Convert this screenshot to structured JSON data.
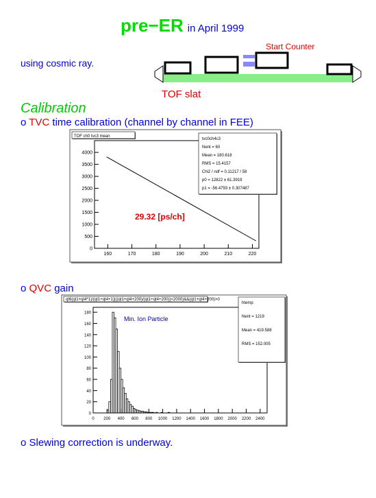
{
  "title": {
    "main": "pre−ER",
    "sub": "in April 1999"
  },
  "intro": "using cosmic ray.",
  "diagram": {
    "start_counter": "Start Counter",
    "slat": "TOF slat"
  },
  "section": "Calibration",
  "items": [
    {
      "bullet": "o",
      "key": "TVC",
      "text": "time calibration (channel by channel in FEE)"
    },
    {
      "bullet": "o",
      "key": "QVC",
      "text": "gain"
    },
    {
      "bullet": "o",
      "text": "Slewing correction is underway."
    }
  ],
  "plots": [
    {
      "type": "line",
      "title": "TOF ch0 tvc3 mean",
      "annotation": "29.32 [ps/ch]",
      "stats": [
        "tvc0ch4c3",
        "Nent = 60",
        "Mean = 180.618",
        "RMS = 15.4157",
        "Chi2 / ndf = 0.11217 / 58",
        "p0 = 12822 ± 61.3919",
        "p1 = -56.4793 ± 0.307487"
      ],
      "x": [
        159.5,
        221.5
      ],
      "values": [
        3814,
        311
      ],
      "xlim": [
        154.5,
        222.7
      ],
      "xticks": [
        160,
        170,
        180,
        190,
        200,
        210,
        220
      ],
      "ylim": [
        0,
        4490
      ],
      "yticks": [
        0,
        500,
        1000,
        1500,
        2000,
        2500,
        3000,
        3500,
        4000
      ]
    },
    {
      "type": "histogram",
      "title": "qt6(qt1+qt4*1)/(qt1+qt4+1)|((qt1+qt4+200)/(qt1+qt4+200))<2000)&&(qt1+qt4+200)>0",
      "annotation": "Min. Ion Particle",
      "stats": [
        "htemp",
        "Nent = 1219",
        "Mean = 419.588",
        "RMS = 152.005"
      ],
      "bins": [
        200,
        225,
        250,
        275,
        300,
        325,
        350,
        375,
        400,
        425,
        450,
        475,
        500,
        525,
        550,
        575,
        600,
        625,
        650,
        675,
        700,
        725,
        750,
        775,
        800,
        825,
        850,
        875,
        900,
        925,
        950,
        975,
        1000,
        1025,
        1050,
        1075,
        1100
      ],
      "counts": [
        5,
        20,
        60,
        180,
        170,
        150,
        110,
        80,
        60,
        45,
        35,
        25,
        20,
        15,
        12,
        8,
        6,
        5,
        4,
        3,
        3,
        2,
        2,
        1,
        1,
        1,
        1,
        0,
        1,
        0,
        0,
        1,
        0,
        0,
        0,
        1
      ],
      "xlim": [
        0,
        2500
      ],
      "xticks": [
        0,
        200,
        400,
        600,
        800,
        1000,
        1200,
        1400,
        1600,
        1800,
        2000,
        2200,
        2400
      ],
      "ylim": [
        0,
        188.8
      ],
      "yticks": [
        0,
        20,
        40,
        60,
        80,
        100,
        120,
        140,
        160,
        180
      ]
    }
  ]
}
